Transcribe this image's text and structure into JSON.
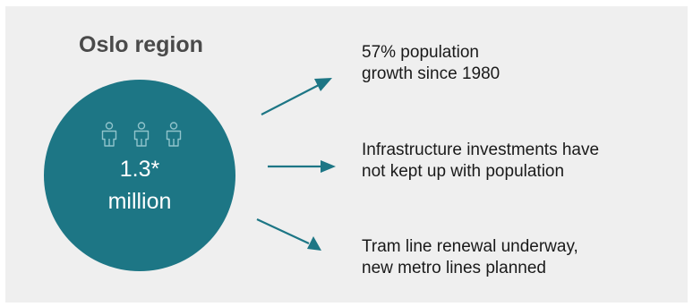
{
  "region": {
    "title": "Oslo region",
    "population_value": "1.3*",
    "population_unit": "million",
    "icon": "person-outline-icon"
  },
  "points": [
    {
      "text": "57% population\ngrowth since 1980"
    },
    {
      "text": "Infrastructure investments have\nnot kept up with population"
    },
    {
      "text": "Tram line renewal underway,\nnew metro lines planned"
    }
  ],
  "colors": {
    "circle": "#1d7685",
    "arrow": "#1d7685",
    "background": "#efefef"
  }
}
